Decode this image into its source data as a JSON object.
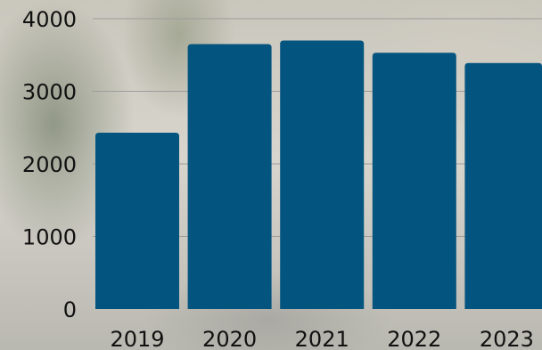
{
  "chart_data": {
    "type": "bar",
    "categories": [
      "2019",
      "2020",
      "2021",
      "2022",
      "2023"
    ],
    "values": [
      2430,
      3650,
      3700,
      3530,
      3390
    ],
    "title": "",
    "xlabel": "",
    "ylabel": "",
    "ylim": [
      0,
      4000
    ],
    "yticks": [
      "0",
      "1000",
      "2000",
      "3000",
      "4000"
    ],
    "grid": true,
    "bar_color": "#03557f"
  }
}
